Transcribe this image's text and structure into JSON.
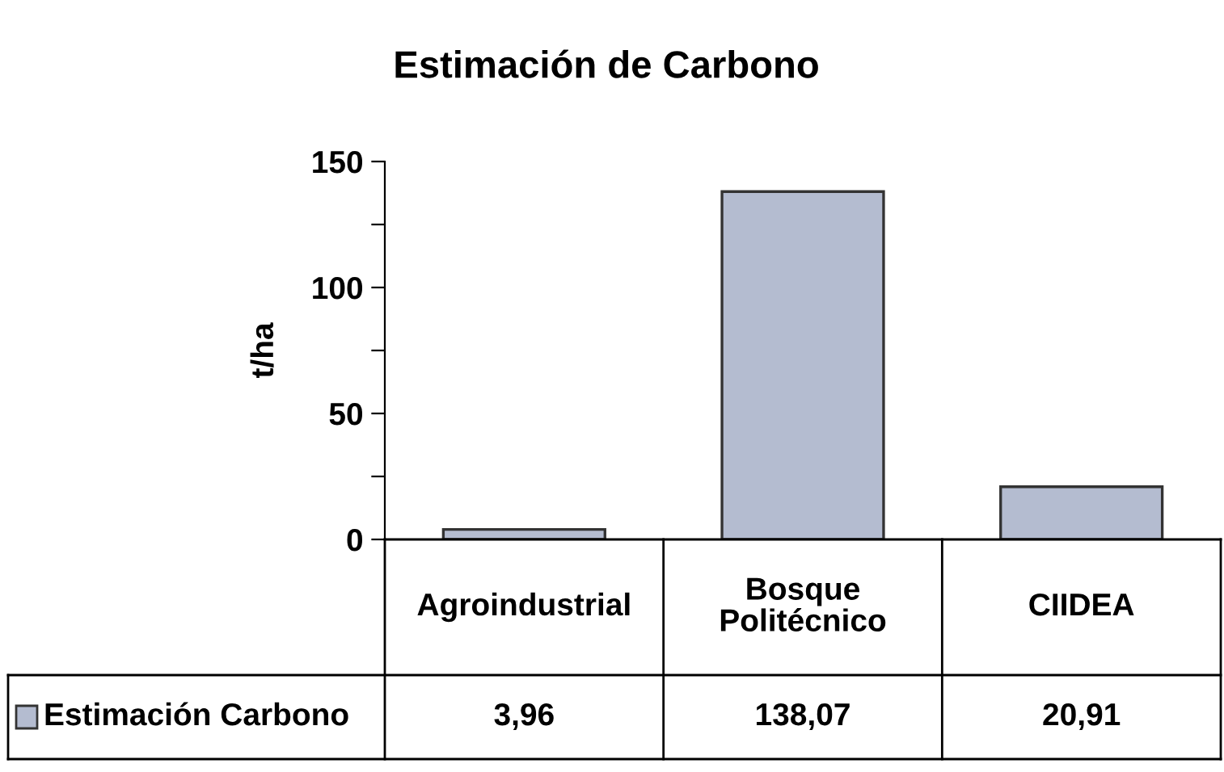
{
  "chart_data": {
    "type": "bar",
    "title": "Estimación de Carbono",
    "ylabel": "t/ha",
    "categories": [
      "Agroindustrial",
      "Bosque\nPolitécnico",
      "CIIDEA"
    ],
    "series": [
      {
        "name": "Estimación Carbono",
        "color": "#b4bcd0",
        "values": [
          3.96,
          138.07,
          20.91
        ],
        "value_labels": [
          "3,96",
          "138,07",
          "20,91"
        ]
      }
    ],
    "ylim": [
      0,
      150
    ],
    "yticks": [
      0,
      {
        "value": 25,
        "label": null
      },
      50,
      {
        "value": 75,
        "label": null
      },
      100,
      {
        "value": 125,
        "label": null
      },
      150
    ],
    "legend": "bottom"
  }
}
